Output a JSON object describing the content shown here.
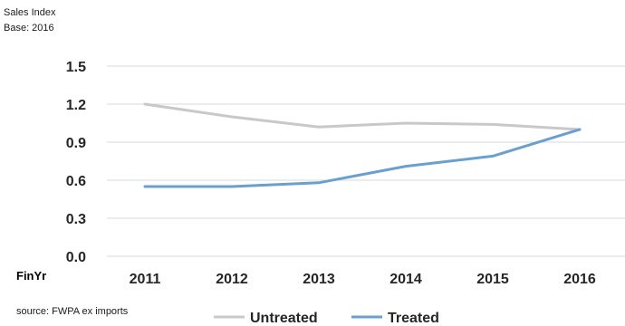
{
  "chart_data": {
    "type": "line",
    "header": [
      "Sales Index",
      "Base: 2016"
    ],
    "xlabel": "FinYr",
    "categories": [
      "2011",
      "2012",
      "2013",
      "2014",
      "2015",
      "2016"
    ],
    "series": [
      {
        "name": "Untreated",
        "color": "#c8c8c8",
        "values": [
          1.2,
          1.1,
          1.02,
          1.05,
          1.04,
          1.0
        ]
      },
      {
        "name": "Treated",
        "color": "#6a9fd0",
        "values": [
          0.55,
          0.55,
          0.58,
          0.71,
          0.79,
          1.0
        ]
      }
    ],
    "yticks": [
      "1.5",
      "1.2",
      "0.9",
      "0.6",
      "0.3",
      "0.0"
    ],
    "ylim": [
      0,
      1.5
    ],
    "grid": true,
    "legend_position": "bottom",
    "source": "source: FWPA ex imports"
  }
}
